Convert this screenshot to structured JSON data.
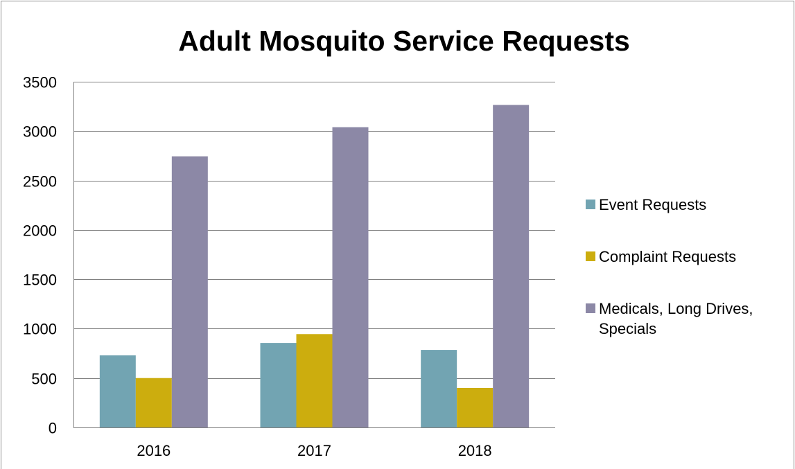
{
  "chart_data": {
    "type": "bar",
    "title": "Adult Mosquito Service Requests",
    "xlabel": "",
    "ylabel": "",
    "categories": [
      "2016",
      "2017",
      "2018"
    ],
    "series": [
      {
        "name": "Event Requests",
        "color": "#72A4B2",
        "values": [
          730,
          855,
          785
        ]
      },
      {
        "name": "Complaint Requests",
        "color": "#CCAD0E",
        "values": [
          500,
          945,
          400
        ]
      },
      {
        "name": "Medicals, Long Drives, Specials",
        "color": "#8C88A6",
        "values": [
          2745,
          3040,
          3265
        ]
      }
    ],
    "ylim": [
      0,
      3500
    ],
    "yticks": [
      "0",
      "500",
      "1000",
      "1500",
      "2000",
      "2500",
      "3000",
      "3500"
    ],
    "grid": true,
    "legend_position": "right"
  }
}
